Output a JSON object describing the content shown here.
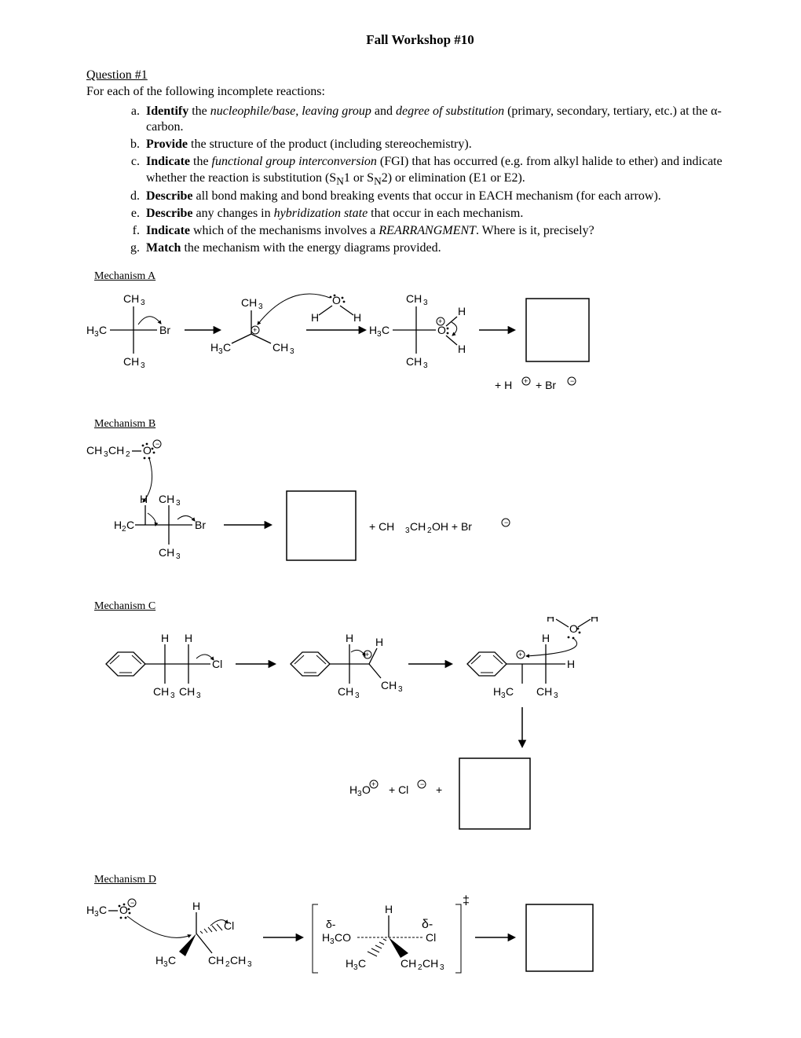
{
  "title": "Fall Workshop #10",
  "question_header": "Question #1",
  "intro": "For each of the following incomplete reactions:",
  "subquestions": [
    {
      "letter": "a",
      "html": "<b>Identify</b> the <i>nucleophile/base, leaving group</i> and <i>degree of substitution</i> (primary, secondary, tertiary, etc.) at the α-carbon."
    },
    {
      "letter": "b",
      "html": "<b>Provide</b> the structure of the product (including stereochemistry)."
    },
    {
      "letter": "c",
      "html": "<b>Indicate</b> the <i>functional group interconversion</i> (FGI) that has occurred (e.g. from alkyl halide to ether) and indicate whether the reaction is substitution (S<sub>N</sub>1 or S<sub>N</sub>2) or elimination (E1 or E2)."
    },
    {
      "letter": "d",
      "html": "<b>Describe</b> all bond making and bond breaking events that occur in EACH mechanism (for each arrow)."
    },
    {
      "letter": "e",
      "html": "<b>Describe</b> any changes in <i>hybridization state</i> that occur in each mechanism."
    },
    {
      "letter": "f",
      "html": "<b>Indicate</b> which of the mechanisms involves a <i>REARRANGMENT</i>.  Where is it, precisely?"
    },
    {
      "letter": "g",
      "html": "<b>Match</b> the mechanism with the energy diagrams provided."
    }
  ],
  "mechA": "Mechanism A",
  "mechB": "Mechanism B",
  "mechC": "Mechanism C",
  "mechD": "Mechanism D",
  "colors": {
    "ink": "#000000",
    "bg": "#ffffff"
  }
}
